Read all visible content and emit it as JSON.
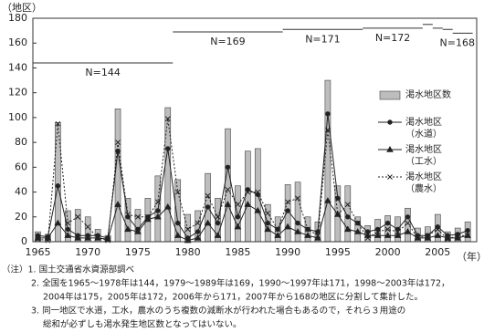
{
  "chart_data": {
    "type": "bar-line",
    "y_label": "（地区）",
    "x_label": "（年）",
    "x": [
      1965,
      1966,
      1967,
      1968,
      1969,
      1970,
      1971,
      1972,
      1973,
      1974,
      1975,
      1976,
      1977,
      1978,
      1979,
      1980,
      1981,
      1982,
      1983,
      1984,
      1985,
      1986,
      1987,
      1988,
      1989,
      1990,
      1991,
      1992,
      1993,
      1994,
      1995,
      1996,
      1997,
      1998,
      1999,
      2000,
      2001,
      2002,
      2003,
      2004,
      2005,
      2006,
      2007,
      2008
    ],
    "xlim": [
      1964.5,
      2008.9
    ],
    "xticks": [
      1965,
      1970,
      1975,
      1980,
      1985,
      1990,
      1995,
      2000,
      2005
    ],
    "ylim": [
      0,
      180
    ],
    "yticks": [
      0,
      20,
      40,
      60,
      80,
      100,
      120,
      140,
      160,
      180
    ],
    "series": [
      {
        "name": "渇水地区数",
        "kind": "bar",
        "color": "#bdbdbd",
        "values": [
          8,
          6,
          96,
          25,
          26,
          20,
          10,
          5,
          107,
          35,
          26,
          35,
          53,
          108,
          50,
          22,
          25,
          55,
          35,
          91,
          45,
          73,
          75,
          30,
          20,
          46,
          48,
          20,
          16,
          130,
          45,
          45,
          20,
          13,
          18,
          21,
          20,
          27,
          11,
          12,
          22,
          8,
          11,
          16
        ]
      },
      {
        "name": "渇水地区\n（水道）",
        "kind": "line",
        "marker": "circle",
        "color": "#222",
        "values": [
          5,
          4,
          45,
          10,
          5,
          5,
          5,
          3,
          73,
          20,
          10,
          20,
          25,
          75,
          15,
          3,
          8,
          28,
          15,
          60,
          20,
          42,
          38,
          15,
          10,
          25,
          15,
          10,
          8,
          103,
          35,
          20,
          15,
          8,
          10,
          15,
          10,
          20,
          5,
          5,
          12,
          5,
          6,
          9
        ]
      },
      {
        "name": "渇水地区\n（工水）",
        "kind": "line",
        "marker": "triangle",
        "color": "#222",
        "values": [
          3,
          3,
          15,
          5,
          3,
          3,
          3,
          2,
          30,
          10,
          8,
          18,
          20,
          28,
          5,
          1,
          3,
          15,
          5,
          30,
          12,
          30,
          25,
          10,
          5,
          12,
          8,
          5,
          3,
          33,
          22,
          10,
          8,
          5,
          5,
          5,
          5,
          8,
          3,
          3,
          5,
          3,
          3,
          5
        ]
      },
      {
        "name": "渇水地区\n（農水）",
        "kind": "line",
        "marker": "cross",
        "dashed": true,
        "color": "#222",
        "values": [
          2,
          1,
          95,
          15,
          20,
          12,
          3,
          1,
          80,
          22,
          20,
          20,
          32,
          99,
          40,
          10,
          15,
          37,
          20,
          42,
          30,
          40,
          40,
          23,
          10,
          32,
          35,
          10,
          5,
          90,
          22,
          30,
          15,
          3,
          8,
          10,
          8,
          15,
          3,
          5,
          10,
          2,
          5,
          5
        ]
      }
    ],
    "annotations": [
      {
        "label": "N=144",
        "from": 1965,
        "to": 1978,
        "n": 144
      },
      {
        "label": "N=169",
        "from": 1979,
        "to": 1989,
        "n": 169
      },
      {
        "label": "N=171",
        "from": 1990,
        "to": 1997,
        "n": 171
      },
      {
        "label": "N=172",
        "from": 1998,
        "to": 2003,
        "n": 172
      },
      {
        "label": null,
        "from": 2004,
        "to": 2004,
        "n": 175
      },
      {
        "label": null,
        "from": 2005,
        "to": 2005,
        "n": 172
      },
      {
        "label": null,
        "from": 2006,
        "to": 2006,
        "n": 171
      },
      {
        "label": "N=168",
        "from": 2007,
        "to": 2008,
        "n": 168
      }
    ],
    "notes": [
      "（注）1.  国土交通省水資源部調べ",
      "2.  全国を1965～1978年は144，1979～1989年は169，1990～1997年は171，1998～2003年は172，",
      "2004年は175，2005年は172，2006年から171，2007年から168の地区に分割して集計した。",
      "3.  同一地区で水道，工水，農水のうち複数の減断水が行われた場合もあるので，それら３用途の",
      "総和が必ずしも渇水発生地区数となってはいない。"
    ]
  }
}
